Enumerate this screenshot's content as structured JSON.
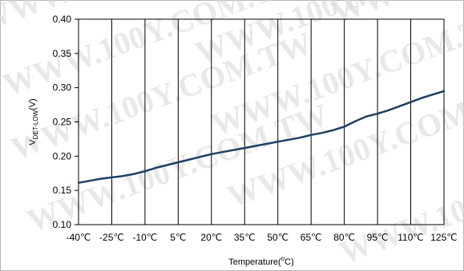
{
  "watermark": "WWW.100Y.COM.TW",
  "chart_data": {
    "type": "line",
    "title": "",
    "xlabel": "Temperature(°C)",
    "xlabel_parts": {
      "before": "Temperature(",
      "sup": "o",
      "after": "C)"
    },
    "ylabel": "VDET-LOW(V)",
    "ylabel_parts": {
      "main": "V",
      "sub": "DET-LOW",
      "after": "(V)"
    },
    "x_ticks": [
      "-40℃",
      "-25℃",
      "-10℃",
      "5℃",
      "20℃",
      "35℃",
      "50℃",
      "65℃",
      "80℃",
      "95℃",
      "110℃",
      "125℃"
    ],
    "y_ticks": [
      "0.10",
      "0.15",
      "0.20",
      "0.25",
      "0.30",
      "0.35",
      "0.40"
    ],
    "xlim": [
      -40,
      125
    ],
    "ylim": [
      0.1,
      0.4
    ],
    "grid": "vertical",
    "line_color": "#1f3f63",
    "series": [
      {
        "name": "",
        "x": [
          -40,
          -35,
          -30,
          -25,
          -20,
          -15,
          -10,
          -5,
          0,
          5,
          10,
          15,
          20,
          25,
          30,
          35,
          40,
          45,
          50,
          55,
          60,
          65,
          70,
          75,
          80,
          85,
          90,
          95,
          100,
          105,
          110,
          115,
          120,
          125
        ],
        "y": [
          0.161,
          0.164,
          0.167,
          0.169,
          0.171,
          0.174,
          0.178,
          0.183,
          0.187,
          0.191,
          0.195,
          0.199,
          0.203,
          0.206,
          0.209,
          0.212,
          0.215,
          0.218,
          0.221,
          0.224,
          0.227,
          0.231,
          0.234,
          0.238,
          0.243,
          0.251,
          0.258,
          0.262,
          0.267,
          0.273,
          0.279,
          0.285,
          0.29,
          0.295
        ]
      }
    ]
  }
}
